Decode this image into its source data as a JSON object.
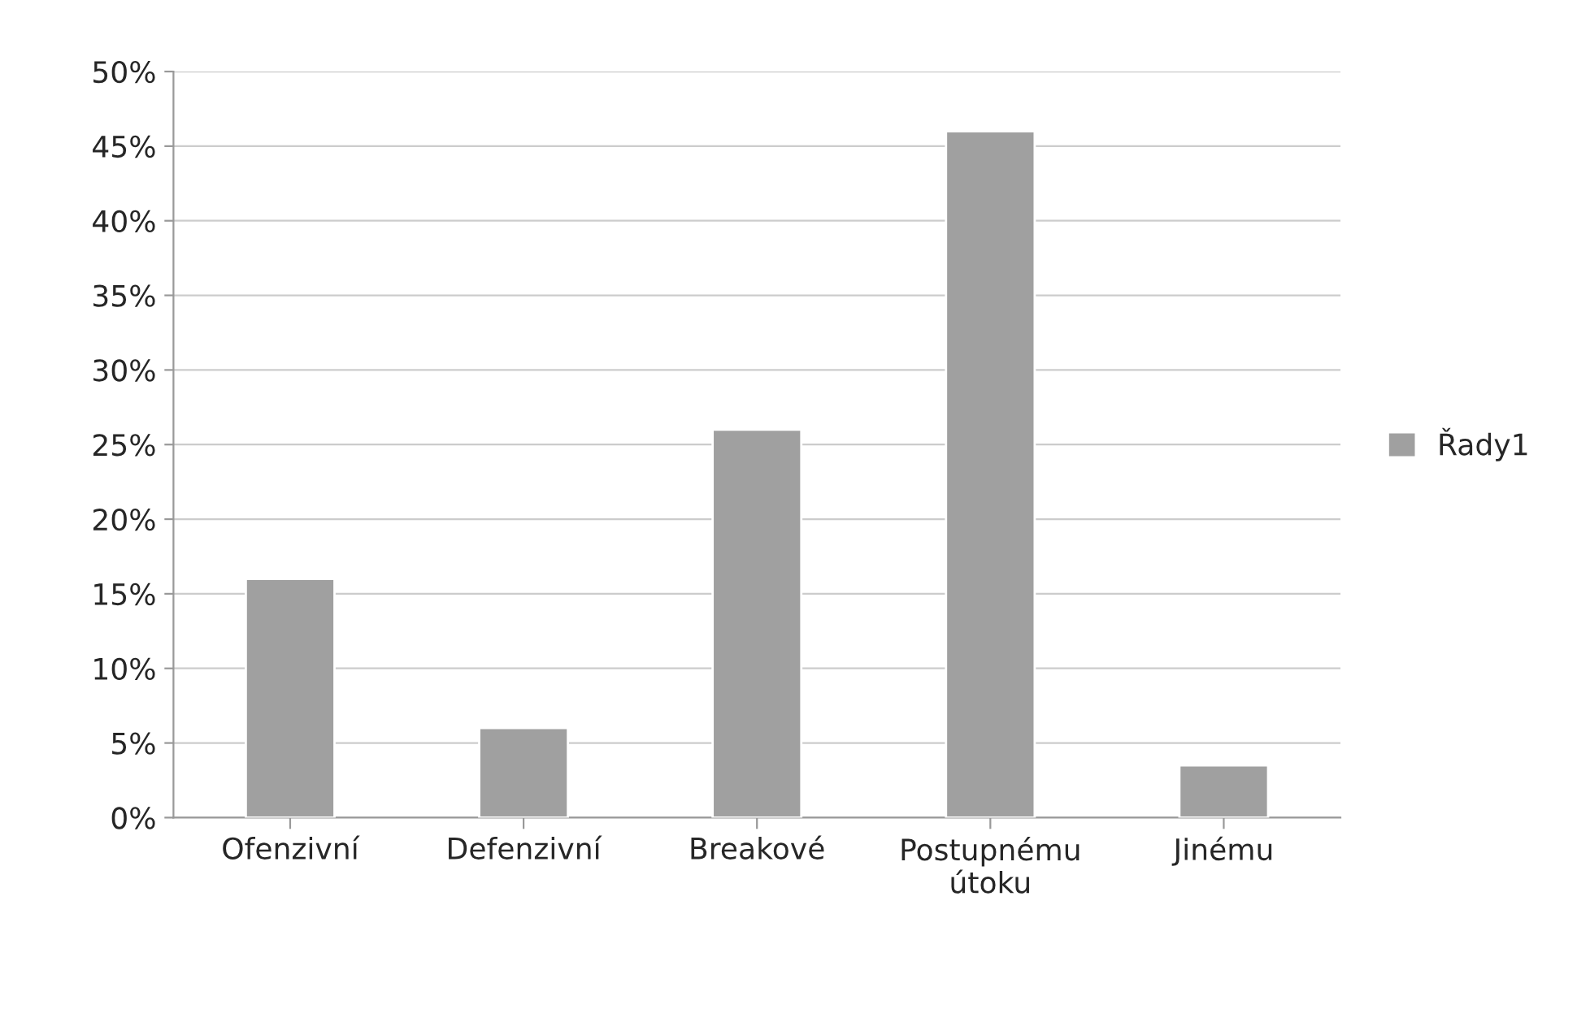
{
  "chart_data": {
    "type": "bar",
    "categories": [
      "Ofenzivní",
      "Defenzivní",
      "Breakové",
      "Postupnému\nútoku",
      "Jinému"
    ],
    "series": [
      {
        "name": "Řady1",
        "color": "#a0a0a0",
        "values": [
          16,
          6,
          26,
          46,
          3.5
        ]
      }
    ],
    "ylim": [
      0,
      50
    ],
    "yticks": [
      {
        "value": 0,
        "label": "0%"
      },
      {
        "value": 5,
        "label": "5%"
      },
      {
        "value": 10,
        "label": "10%"
      },
      {
        "value": 15,
        "label": "15%"
      },
      {
        "value": 20,
        "label": "20%"
      },
      {
        "value": 25,
        "label": "25%"
      },
      {
        "value": 30,
        "label": "30%"
      },
      {
        "value": 35,
        "label": "35%"
      },
      {
        "value": 40,
        "label": "40%"
      },
      {
        "value": 45,
        "label": "45%"
      },
      {
        "value": 50,
        "label": "50%"
      }
    ],
    "grid": "y",
    "legend": "right"
  }
}
